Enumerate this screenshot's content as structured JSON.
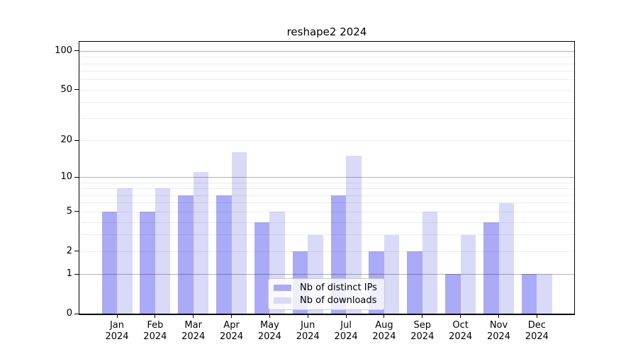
{
  "page": {
    "background": "#ffffff"
  },
  "chart_data": {
    "type": "bar",
    "title": "reshape2 2024",
    "xlabel": "",
    "ylabel": "",
    "categories": [
      "Jan",
      "Feb",
      "Mar",
      "Apr",
      "May",
      "Jun",
      "Jul",
      "Aug",
      "Sep",
      "Oct",
      "Nov",
      "Dec"
    ],
    "x_year_label": "2024",
    "series": [
      {
        "name": "Nb of distinct IPs",
        "color": "#aaaaf6",
        "values": [
          5,
          5,
          7,
          7,
          4,
          2,
          7,
          2,
          2,
          1,
          4,
          1
        ]
      },
      {
        "name": "Nb of downloads",
        "color": "#d9d9f8",
        "values": [
          8,
          8,
          11,
          16,
          5,
          3,
          15,
          3,
          5,
          3,
          6,
          1
        ]
      }
    ],
    "yscale": "log1p",
    "ylim": [
      0,
      100
    ],
    "yticks": [
      100,
      50,
      20,
      10,
      5,
      2,
      1,
      0
    ],
    "major_gridlines": [
      1,
      10,
      100
    ],
    "minor_gridlines": [
      2,
      3,
      4,
      5,
      6,
      7,
      8,
      9,
      20,
      30,
      40,
      50,
      60,
      70,
      80,
      90
    ],
    "grid": true,
    "legend_position": "bottom-center"
  }
}
